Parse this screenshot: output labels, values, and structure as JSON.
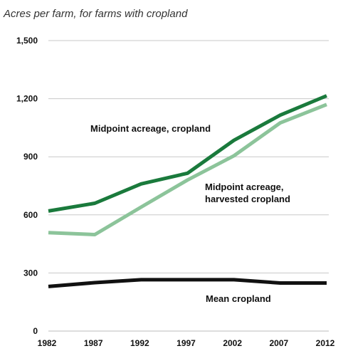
{
  "chart_data": {
    "type": "line",
    "title": "",
    "subtitle": "Acres per farm, for farms with cropland",
    "xlabel": "",
    "ylabel": "",
    "x": [
      "1982",
      "1987",
      "1992",
      "1997",
      "2002",
      "2007",
      "2012"
    ],
    "y_ticks": [
      "0",
      "300",
      "600",
      "900",
      "1,200",
      "1,500"
    ],
    "ylim": [
      0,
      1500
    ],
    "grid": true,
    "legend": "none",
    "series": [
      {
        "key": "midpoint_cropland",
        "label_lines": [
          "Midpoint acreage, cropland"
        ],
        "color": "#1a7a3c",
        "values": [
          620,
          660,
          760,
          815,
          985,
          1115,
          1215
        ]
      },
      {
        "key": "midpoint_harvested",
        "label_lines": [
          "Midpoint acreage,",
          "harvested cropland"
        ],
        "color": "#8cc49a",
        "values": [
          508,
          498,
          640,
          780,
          905,
          1075,
          1170
        ]
      },
      {
        "key": "mean_cropland",
        "label_lines": [
          "Mean cropland"
        ],
        "color": "#111111",
        "values": [
          230,
          250,
          265,
          265,
          265,
          248,
          248
        ]
      }
    ]
  }
}
